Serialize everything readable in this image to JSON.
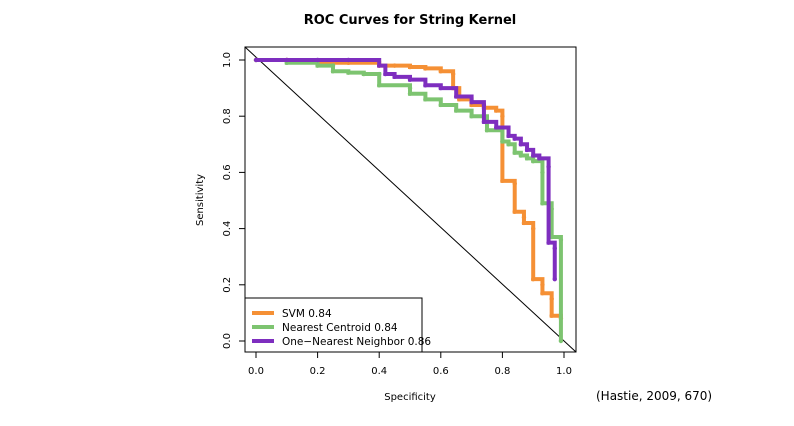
{
  "chart_data": {
    "type": "line",
    "title": "ROC Curves for String Kernel",
    "xlabel": "Specificity",
    "ylabel": "Sensitivity",
    "xlim": [
      0.0,
      1.0
    ],
    "ylim": [
      0.0,
      1.0
    ],
    "x_reversed_to_descending": false,
    "xticks": [
      "0.0",
      "0.2",
      "0.4",
      "0.6",
      "0.8",
      "1.0"
    ],
    "yticks": [
      "0.0",
      "0.2",
      "0.4",
      "0.6",
      "0.8",
      "1.0"
    ],
    "grid": false,
    "legend_position": "bottom-left",
    "reference_line": {
      "x": [
        0.0,
        1.0
      ],
      "y": [
        1.0,
        0.0
      ]
    },
    "series": [
      {
        "name": "SVM  0.84",
        "color": "#f59035",
        "x": [
          0.0,
          0.1,
          0.2,
          0.3,
          0.4,
          0.45,
          0.5,
          0.55,
          0.6,
          0.64,
          0.64,
          0.66,
          0.7,
          0.74,
          0.78,
          0.8,
          0.8,
          0.84,
          0.84,
          0.87,
          0.87,
          0.9,
          0.9,
          0.93,
          0.93,
          0.96,
          0.96,
          0.99
        ],
        "y": [
          1.0,
          1.0,
          0.99,
          0.99,
          0.98,
          0.98,
          0.975,
          0.97,
          0.96,
          0.95,
          0.9,
          0.86,
          0.84,
          0.83,
          0.82,
          0.8,
          0.57,
          0.56,
          0.46,
          0.44,
          0.42,
          0.4,
          0.22,
          0.2,
          0.17,
          0.15,
          0.09,
          0.08
        ]
      },
      {
        "name": "Nearest Centroid  0.84",
        "color": "#7dc470",
        "x": [
          0.0,
          0.1,
          0.2,
          0.25,
          0.25,
          0.3,
          0.35,
          0.4,
          0.4,
          0.5,
          0.5,
          0.55,
          0.6,
          0.65,
          0.7,
          0.75,
          0.8,
          0.82,
          0.84,
          0.86,
          0.88,
          0.9,
          0.93,
          0.93,
          0.96,
          0.96,
          0.99,
          0.99
        ],
        "y": [
          1.0,
          0.99,
          0.98,
          0.98,
          0.96,
          0.955,
          0.95,
          0.95,
          0.91,
          0.9,
          0.88,
          0.86,
          0.84,
          0.82,
          0.8,
          0.75,
          0.71,
          0.7,
          0.67,
          0.66,
          0.65,
          0.64,
          0.6,
          0.49,
          0.47,
          0.37,
          0.36,
          0.0
        ]
      },
      {
        "name": "One−Nearest Neighbor 0.86",
        "color": "#7e2ebf",
        "x": [
          0.0,
          0.1,
          0.2,
          0.3,
          0.4,
          0.42,
          0.45,
          0.5,
          0.55,
          0.6,
          0.65,
          0.7,
          0.74,
          0.74,
          0.78,
          0.82,
          0.84,
          0.86,
          0.88,
          0.9,
          0.92,
          0.95,
          0.95,
          0.97,
          0.97
        ],
        "y": [
          1.0,
          1.0,
          1.0,
          1.0,
          0.98,
          0.95,
          0.94,
          0.93,
          0.91,
          0.9,
          0.87,
          0.85,
          0.84,
          0.78,
          0.76,
          0.73,
          0.72,
          0.7,
          0.68,
          0.66,
          0.65,
          0.62,
          0.35,
          0.33,
          0.22
        ]
      }
    ]
  },
  "citation": "(Hastie, 2009, 670)"
}
